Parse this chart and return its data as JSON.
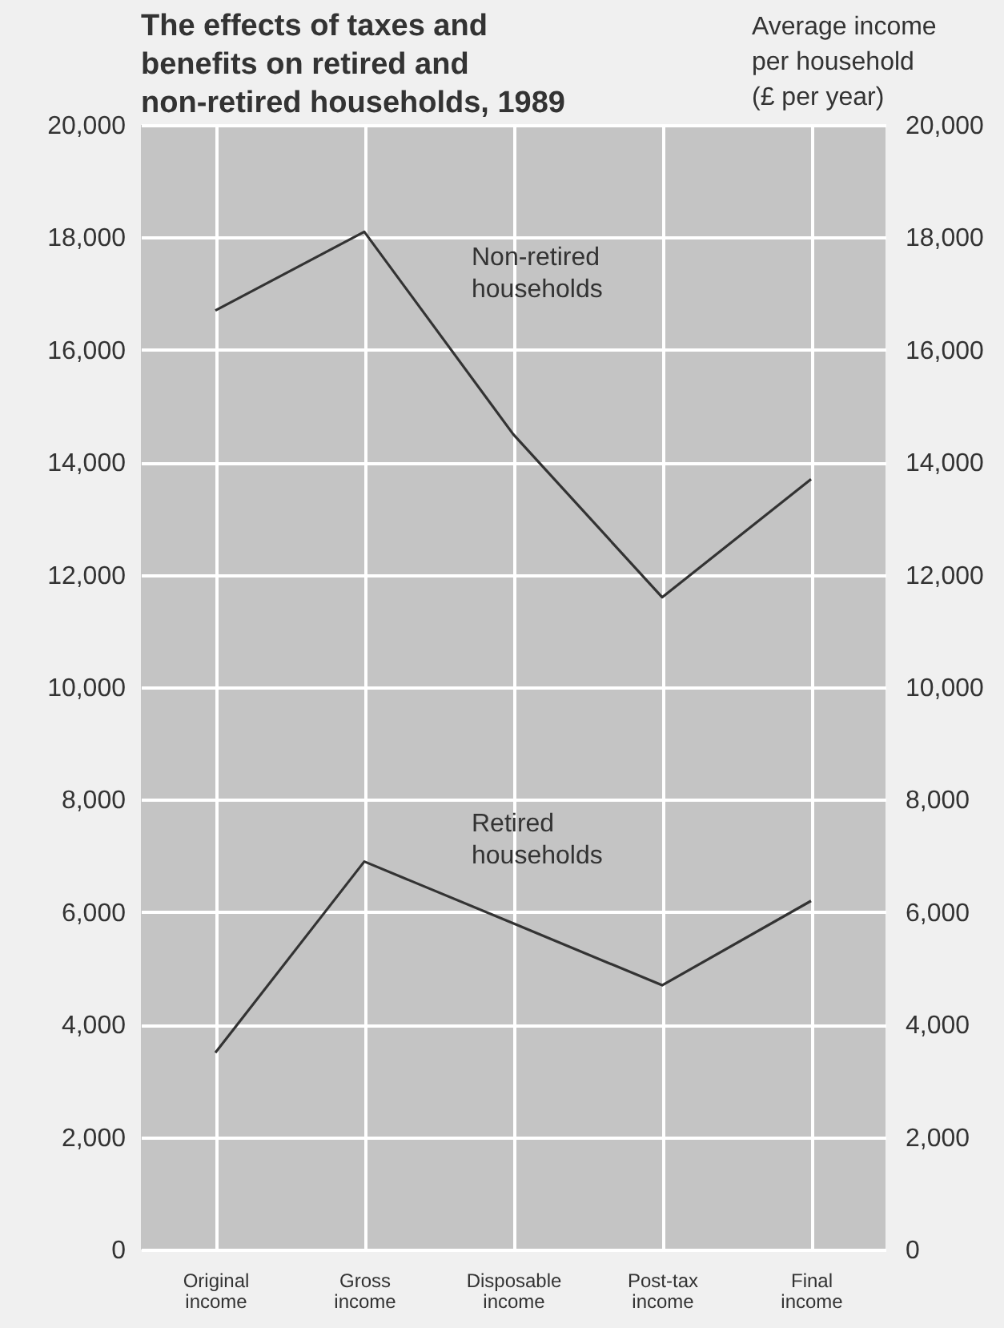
{
  "chart_data": {
    "type": "line",
    "title": "The effects of taxes and benefits on retired and non-retired households, 1989",
    "y2label": "Average income per household (£ per year)",
    "categories": [
      "Original income",
      "Gross income",
      "Disposable income",
      "Post-tax income",
      "Final income"
    ],
    "series": [
      {
        "name": "Non-retired households",
        "color": "#333333",
        "values": [
          16700,
          18100,
          14500,
          11600,
          13700
        ]
      },
      {
        "name": "Retired households",
        "color": "#333333",
        "values": [
          3500,
          6900,
          5800,
          4700,
          6200
        ]
      }
    ],
    "ylim": [
      0,
      20000
    ],
    "yticks": [
      0,
      {
        "value": 2000,
        "label": "2,000"
      },
      {
        "value": 4000,
        "label": "4,000"
      },
      {
        "value": 6000,
        "label": "6,000"
      },
      {
        "value": 8000,
        "label": "8,000"
      },
      {
        "value": 10000,
        "label": "10,000"
      },
      {
        "value": 12000,
        "label": "12,000"
      },
      {
        "value": 14000,
        "label": "14,000"
      },
      {
        "value": 16000,
        "label": "16,000"
      },
      {
        "value": 18000,
        "label": "18,000"
      },
      {
        "value": 20000,
        "label": "20,000"
      }
    ],
    "y2lim": [
      0,
      20000
    ],
    "y2ticks": [
      0,
      {
        "value": 2000,
        "label": "2,000"
      },
      {
        "value": 4000,
        "label": "4,000"
      },
      {
        "value": 6000,
        "label": "6,000"
      },
      {
        "value": 8000,
        "label": "8,000"
      },
      {
        "value": 10000,
        "label": "10,000"
      },
      {
        "value": 12000,
        "label": "12,000"
      },
      {
        "value": 14000,
        "label": "14,000"
      },
      {
        "value": 16000,
        "label": "16,000"
      },
      {
        "value": 18000,
        "label": "18,000"
      },
      {
        "value": 20000,
        "label": "20,000"
      }
    ],
    "grid": true,
    "legend": false
  }
}
